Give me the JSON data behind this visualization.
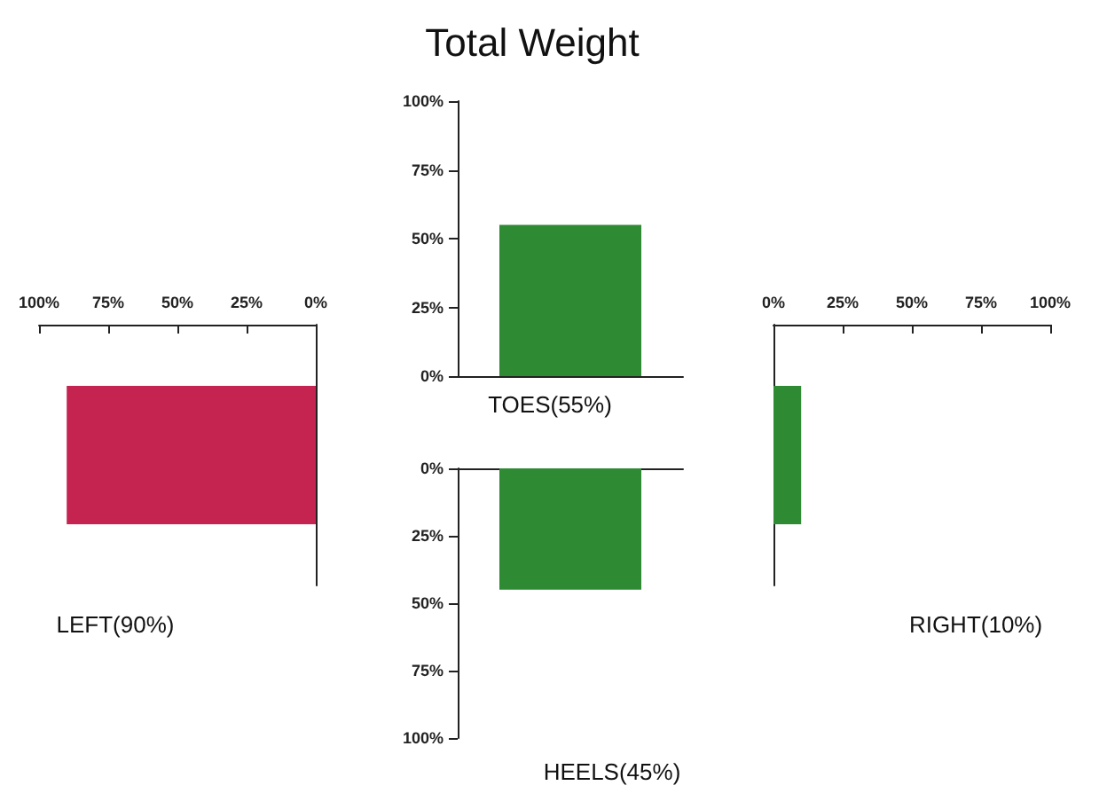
{
  "chart_data": [
    {
      "type": "bar",
      "orientation": "horizontal",
      "categories": [
        null
      ],
      "values": [
        90
      ],
      "color": "#c4244f",
      "xlim": [
        100,
        0
      ],
      "xticks": [
        {
          "value": 100,
          "label": "100%"
        },
        {
          "value": 75,
          "label": "75%"
        },
        {
          "value": 50,
          "label": "50%"
        },
        {
          "value": 25,
          "label": "25%"
        },
        {
          "value": 0,
          "label": "0%"
        }
      ],
      "xlabel": "LEFT(90%)",
      "grid": false
    },
    {
      "type": "bar",
      "title": "Total Weight",
      "categories": [
        null
      ],
      "values": [
        55
      ],
      "color": "#2f8a34",
      "ylim": [
        0,
        100
      ],
      "yticks": [
        {
          "value": 0,
          "label": "0%"
        },
        {
          "value": 25,
          "label": "25%"
        },
        {
          "value": 50,
          "label": "50%"
        },
        {
          "value": 75,
          "label": "75%"
        },
        {
          "value": 100,
          "label": "100%"
        }
      ],
      "xlabel": "TOES(55%)",
      "grid": false
    },
    {
      "type": "bar",
      "categories": [
        null
      ],
      "values": [
        45
      ],
      "color": "#2f8a34",
      "ylim": [
        100,
        0
      ],
      "yticks": [
        {
          "value": 0,
          "label": "0%"
        },
        {
          "value": 25,
          "label": "25%"
        },
        {
          "value": 50,
          "label": "50%"
        },
        {
          "value": 75,
          "label": "75%"
        },
        {
          "value": 100,
          "label": "100%"
        }
      ],
      "xlabel": "HEELS(45%)",
      "grid": false
    },
    {
      "type": "bar",
      "orientation": "horizontal",
      "categories": [
        null
      ],
      "values": [
        10
      ],
      "color": "#2f8a34",
      "xlim": [
        0,
        100
      ],
      "xticks": [
        {
          "value": 0,
          "label": "0%"
        },
        {
          "value": 25,
          "label": "25%"
        },
        {
          "value": 50,
          "label": "50%"
        },
        {
          "value": 75,
          "label": "75%"
        },
        {
          "value": 100,
          "label": "100%"
        }
      ],
      "xlabel": "RIGHT(10%)",
      "grid": false
    }
  ]
}
